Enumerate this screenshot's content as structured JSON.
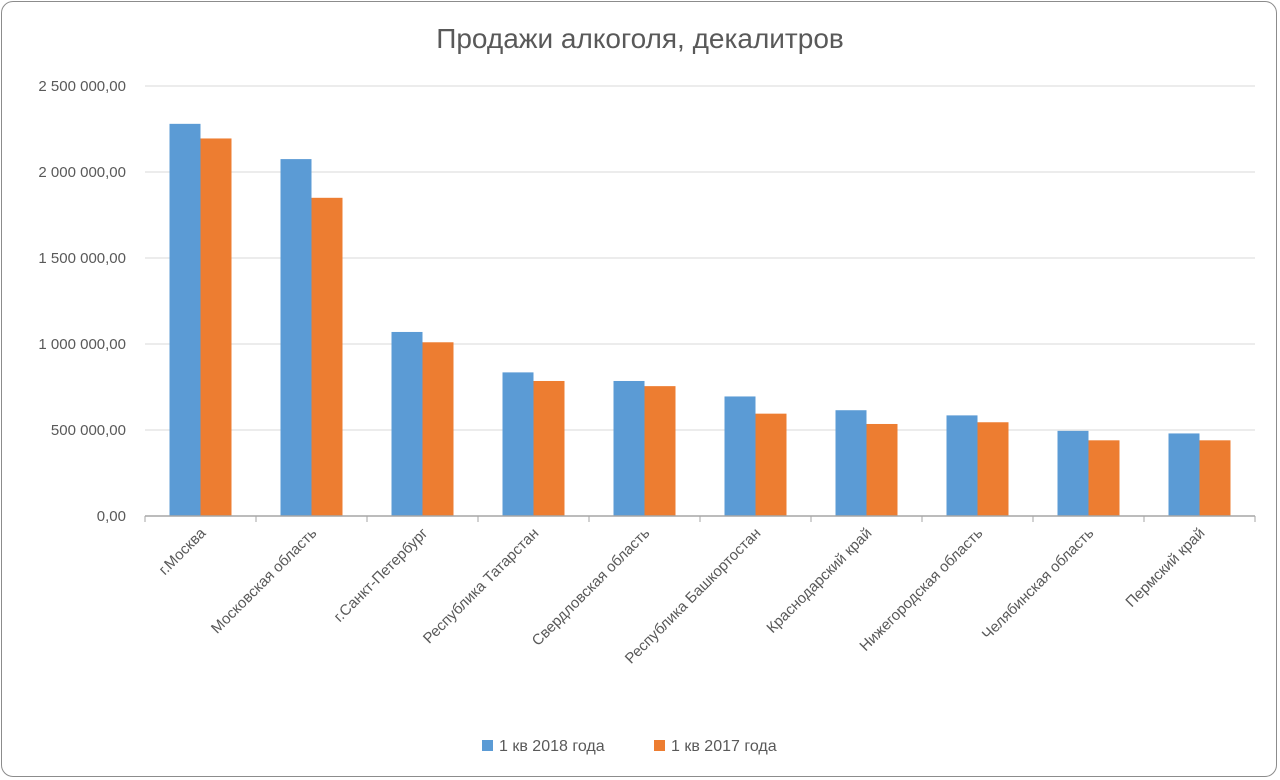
{
  "chart_data": {
    "type": "bar",
    "title": "Продажи алкоголя, декалитров",
    "xlabel": "",
    "ylabel": "",
    "ylim": [
      0,
      2500000
    ],
    "yticks": [
      0,
      500000,
      1000000,
      1500000,
      2000000,
      2500000
    ],
    "ytick_labels": [
      "0,00",
      "500 000,00",
      "1 000 000,00",
      "1 500 000,00",
      "2 000 000,00",
      "2 500 000,00"
    ],
    "grid": true,
    "legend_position": "bottom",
    "categories": [
      "г.Москва",
      "Московская область",
      "г.Санкт-Петербург",
      "Республика Татарстан",
      "Свердловская область",
      "Республика Башкортостан",
      "Краснодарский край",
      "Нижегородская область",
      "Челябинская область",
      "Пермский край"
    ],
    "series": [
      {
        "name": "1 кв 2018 года",
        "color": "#5b9bd5",
        "values": [
          2280000,
          2075000,
          1070000,
          835000,
          785000,
          695000,
          615000,
          585000,
          495000,
          480000
        ]
      },
      {
        "name": "1 кв 2017 года",
        "color": "#ed7d31",
        "values": [
          2195000,
          1850000,
          1010000,
          785000,
          755000,
          595000,
          535000,
          545000,
          440000,
          440000
        ]
      }
    ]
  }
}
